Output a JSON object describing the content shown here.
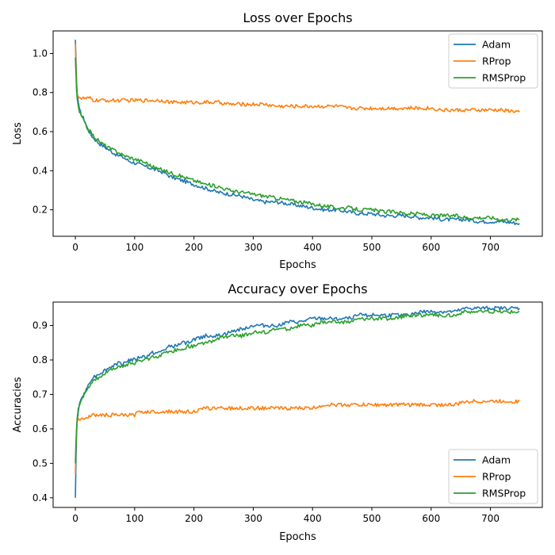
{
  "chart_data": [
    {
      "type": "line",
      "title": "Loss over Epochs",
      "xlabel": "Epochs",
      "ylabel": "Loss",
      "xlim": [
        -37.5,
        787.5
      ],
      "ylim": [
        0.0645,
        1.1155
      ],
      "xticks": [
        0,
        100,
        200,
        300,
        400,
        500,
        600,
        700
      ],
      "xtick_labels": [
        "0",
        "100",
        "200",
        "300",
        "400",
        "500",
        "600",
        "700"
      ],
      "yticks": [
        0.2,
        0.4,
        0.6,
        0.8,
        1.0
      ],
      "ytick_labels": [
        "0.2",
        "0.4",
        "0.6",
        "0.8",
        "1.0"
      ],
      "grid": false,
      "legend": "top-right",
      "x": [
        0,
        1,
        2,
        3,
        5,
        7,
        10,
        15,
        20,
        25,
        30,
        40,
        50,
        60,
        70,
        80,
        90,
        100,
        110,
        120,
        130,
        140,
        150,
        160,
        170,
        180,
        190,
        200,
        220,
        240,
        260,
        280,
        300,
        320,
        340,
        360,
        380,
        400,
        420,
        440,
        460,
        480,
        500,
        520,
        540,
        560,
        580,
        600,
        620,
        640,
        660,
        680,
        700,
        720,
        749
      ],
      "series": [
        {
          "name": "Adam",
          "color": "#1f77b4",
          "values": [
            1.07,
            0.98,
            0.86,
            0.8,
            0.75,
            0.71,
            0.69,
            0.66,
            0.62,
            0.59,
            0.57,
            0.54,
            0.52,
            0.5,
            0.48,
            0.47,
            0.45,
            0.44,
            0.43,
            0.42,
            0.41,
            0.4,
            0.39,
            0.37,
            0.36,
            0.35,
            0.34,
            0.33,
            0.31,
            0.29,
            0.28,
            0.27,
            0.25,
            0.24,
            0.24,
            0.23,
            0.22,
            0.21,
            0.2,
            0.2,
            0.19,
            0.18,
            0.18,
            0.17,
            0.17,
            0.17,
            0.16,
            0.16,
            0.15,
            0.15,
            0.15,
            0.14,
            0.14,
            0.14,
            0.13
          ]
        },
        {
          "name": "RProp",
          "color": "#ff7f0e",
          "values": [
            1.05,
            0.93,
            0.81,
            0.79,
            0.78,
            0.78,
            0.77,
            0.77,
            0.77,
            0.77,
            0.76,
            0.76,
            0.76,
            0.76,
            0.76,
            0.76,
            0.76,
            0.76,
            0.76,
            0.76,
            0.76,
            0.76,
            0.76,
            0.75,
            0.75,
            0.75,
            0.75,
            0.75,
            0.75,
            0.75,
            0.74,
            0.74,
            0.74,
            0.74,
            0.73,
            0.73,
            0.73,
            0.73,
            0.73,
            0.73,
            0.72,
            0.72,
            0.72,
            0.72,
            0.72,
            0.72,
            0.72,
            0.72,
            0.71,
            0.71,
            0.71,
            0.71,
            0.71,
            0.71,
            0.7
          ]
        },
        {
          "name": "RMSProp",
          "color": "#2ca02c",
          "values": [
            0.98,
            0.9,
            0.82,
            0.77,
            0.73,
            0.7,
            0.68,
            0.65,
            0.62,
            0.6,
            0.58,
            0.55,
            0.53,
            0.51,
            0.5,
            0.48,
            0.47,
            0.46,
            0.45,
            0.44,
            0.42,
            0.41,
            0.4,
            0.39,
            0.38,
            0.37,
            0.36,
            0.35,
            0.33,
            0.32,
            0.3,
            0.29,
            0.28,
            0.27,
            0.26,
            0.25,
            0.24,
            0.23,
            0.22,
            0.21,
            0.21,
            0.2,
            0.2,
            0.19,
            0.19,
            0.18,
            0.18,
            0.17,
            0.17,
            0.17,
            0.16,
            0.16,
            0.16,
            0.15,
            0.15
          ]
        }
      ]
    },
    {
      "type": "line",
      "title": "Accuracy over Epochs",
      "xlabel": "Epochs",
      "ylabel": "Accuracies",
      "xlim": [
        -37.5,
        787.5
      ],
      "ylim": [
        0.372,
        0.968
      ],
      "xticks": [
        0,
        100,
        200,
        300,
        400,
        500,
        600,
        700
      ],
      "xtick_labels": [
        "0",
        "100",
        "200",
        "300",
        "400",
        "500",
        "600",
        "700"
      ],
      "yticks": [
        0.4,
        0.5,
        0.6,
        0.7,
        0.8,
        0.9
      ],
      "ytick_labels": [
        "0.4",
        "0.5",
        "0.6",
        "0.7",
        "0.8",
        "0.9"
      ],
      "grid": false,
      "legend": "bottom-right",
      "x": [
        0,
        1,
        2,
        3,
        5,
        7,
        10,
        15,
        20,
        25,
        30,
        40,
        50,
        60,
        70,
        80,
        90,
        100,
        110,
        120,
        130,
        140,
        150,
        160,
        170,
        180,
        190,
        200,
        220,
        240,
        260,
        280,
        300,
        320,
        340,
        360,
        380,
        400,
        420,
        440,
        460,
        480,
        500,
        520,
        540,
        560,
        580,
        600,
        620,
        640,
        660,
        680,
        700,
        720,
        749
      ],
      "series": [
        {
          "name": "Adam",
          "color": "#1f77b4",
          "values": [
            0.4,
            0.5,
            0.58,
            0.62,
            0.65,
            0.67,
            0.69,
            0.7,
            0.72,
            0.74,
            0.75,
            0.76,
            0.77,
            0.78,
            0.79,
            0.79,
            0.8,
            0.8,
            0.81,
            0.81,
            0.82,
            0.82,
            0.83,
            0.84,
            0.84,
            0.85,
            0.85,
            0.86,
            0.87,
            0.87,
            0.88,
            0.89,
            0.9,
            0.9,
            0.9,
            0.91,
            0.91,
            0.92,
            0.92,
            0.92,
            0.92,
            0.93,
            0.93,
            0.93,
            0.93,
            0.93,
            0.94,
            0.94,
            0.94,
            0.94,
            0.95,
            0.95,
            0.95,
            0.95,
            0.95
          ]
        },
        {
          "name": "RProp",
          "color": "#ff7f0e",
          "values": [
            0.47,
            0.55,
            0.6,
            0.62,
            0.63,
            0.63,
            0.63,
            0.63,
            0.63,
            0.64,
            0.64,
            0.64,
            0.64,
            0.64,
            0.64,
            0.64,
            0.64,
            0.64,
            0.65,
            0.65,
            0.65,
            0.65,
            0.65,
            0.65,
            0.65,
            0.65,
            0.65,
            0.65,
            0.66,
            0.66,
            0.66,
            0.66,
            0.66,
            0.66,
            0.66,
            0.66,
            0.66,
            0.66,
            0.67,
            0.67,
            0.67,
            0.67,
            0.67,
            0.67,
            0.67,
            0.67,
            0.67,
            0.67,
            0.67,
            0.67,
            0.68,
            0.68,
            0.68,
            0.68,
            0.68
          ]
        },
        {
          "name": "RMSProp",
          "color": "#2ca02c",
          "values": [
            0.5,
            0.56,
            0.6,
            0.63,
            0.66,
            0.67,
            0.68,
            0.7,
            0.71,
            0.73,
            0.74,
            0.75,
            0.76,
            0.77,
            0.78,
            0.78,
            0.79,
            0.79,
            0.8,
            0.8,
            0.81,
            0.81,
            0.82,
            0.82,
            0.83,
            0.83,
            0.84,
            0.84,
            0.85,
            0.86,
            0.87,
            0.87,
            0.88,
            0.88,
            0.89,
            0.89,
            0.9,
            0.9,
            0.91,
            0.91,
            0.91,
            0.92,
            0.92,
            0.92,
            0.92,
            0.93,
            0.93,
            0.93,
            0.93,
            0.93,
            0.94,
            0.94,
            0.94,
            0.94,
            0.94
          ]
        }
      ]
    }
  ]
}
